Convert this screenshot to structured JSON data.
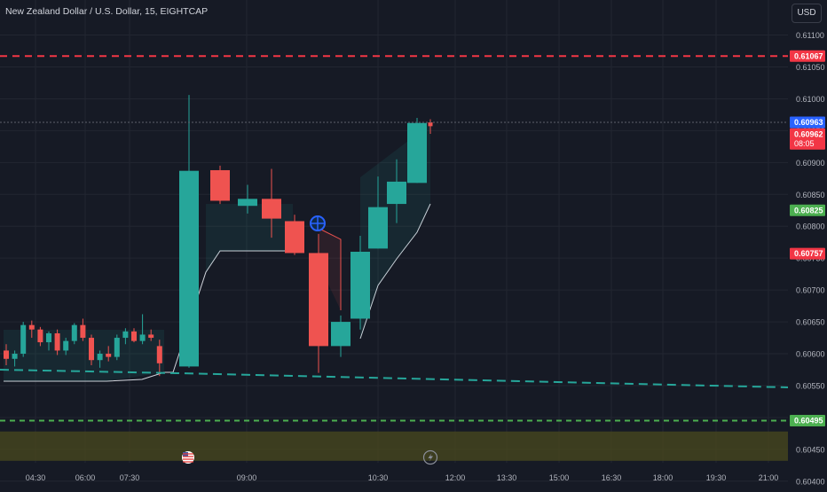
{
  "header": {
    "symbol_title": "New Zealand Dollar / U.S. Dollar, 15, EIGHTCAP",
    "currency_button": "USD"
  },
  "colors": {
    "background": "#161a25",
    "grid": "#222631",
    "up": "#26a69a",
    "down": "#ef5350",
    "red_level": "#f23645",
    "green_level": "#4caf50",
    "teal_dash": "#26a69a",
    "zone_fill": "#4a4a1e",
    "price_blue": "#2962ff",
    "axis_text": "#b2b5be"
  },
  "chart_data": {
    "type": "candlestick",
    "title": "New Zealand Dollar / U.S. Dollar, 15, EIGHTCAP",
    "ylim": [
      0.6039,
      0.61155
    ],
    "y_ticks": [
      "0.61100",
      "0.61050",
      "0.61000",
      "0.60950",
      "0.60900",
      "0.60850",
      "0.60800",
      "0.60750",
      "0.60700",
      "0.60650",
      "0.60600",
      "0.60550",
      "0.60500",
      "0.60450",
      "0.60400"
    ],
    "x_ticks": [
      "04:30",
      "06:00",
      "07:30",
      "09:00",
      "10:30",
      "12:00",
      "13:30",
      "15:00",
      "16:30",
      "18:00",
      "19:30",
      "21:00"
    ],
    "candles": [
      {
        "o": 0.60605,
        "h": 0.60615,
        "l": 0.60582,
        "c": 0.60592
      },
      {
        "o": 0.60592,
        "h": 0.60605,
        "l": 0.6058,
        "c": 0.606
      },
      {
        "o": 0.606,
        "h": 0.6065,
        "l": 0.60595,
        "c": 0.60645
      },
      {
        "o": 0.60645,
        "h": 0.60652,
        "l": 0.60625,
        "c": 0.60638
      },
      {
        "o": 0.60638,
        "h": 0.60642,
        "l": 0.60612,
        "c": 0.60618
      },
      {
        "o": 0.60618,
        "h": 0.60635,
        "l": 0.60605,
        "c": 0.60632
      },
      {
        "o": 0.60632,
        "h": 0.60638,
        "l": 0.60598,
        "c": 0.60605
      },
      {
        "o": 0.60605,
        "h": 0.60625,
        "l": 0.60598,
        "c": 0.6062
      },
      {
        "o": 0.6062,
        "h": 0.60648,
        "l": 0.60615,
        "c": 0.60645
      },
      {
        "o": 0.60645,
        "h": 0.60655,
        "l": 0.6062,
        "c": 0.60625
      },
      {
        "o": 0.60625,
        "h": 0.6063,
        "l": 0.60582,
        "c": 0.6059
      },
      {
        "o": 0.6059,
        "h": 0.60605,
        "l": 0.60578,
        "c": 0.606
      },
      {
        "o": 0.606,
        "h": 0.60612,
        "l": 0.60588,
        "c": 0.60595
      },
      {
        "o": 0.60595,
        "h": 0.6063,
        "l": 0.6059,
        "c": 0.60625
      },
      {
        "o": 0.60625,
        "h": 0.6064,
        "l": 0.60615,
        "c": 0.60635
      },
      {
        "o": 0.60635,
        "h": 0.6064,
        "l": 0.60618,
        "c": 0.6062
      },
      {
        "o": 0.6062,
        "h": 0.60662,
        "l": 0.60615,
        "c": 0.6063
      },
      {
        "o": 0.6063,
        "h": 0.60638,
        "l": 0.6062,
        "c": 0.60625
      },
      {
        "o": 0.60612,
        "h": 0.60622,
        "l": 0.60565,
        "c": 0.60585
      },
      {
        "o": 0.6058,
        "h": 0.61006,
        "l": 0.60578,
        "c": 0.60887
      },
      {
        "o": 0.60888,
        "h": 0.60895,
        "l": 0.60835,
        "c": 0.6084
      },
      {
        "o": 0.60832,
        "h": 0.60865,
        "l": 0.6082,
        "c": 0.60843
      },
      {
        "o": 0.60843,
        "h": 0.6089,
        "l": 0.60782,
        "c": 0.60812
      },
      {
        "o": 0.60808,
        "h": 0.60818,
        "l": 0.60755,
        "c": 0.60758
      },
      {
        "o": 0.60758,
        "h": 0.60788,
        "l": 0.6057,
        "c": 0.60612
      },
      {
        "o": 0.60612,
        "h": 0.6066,
        "l": 0.60595,
        "c": 0.6065
      },
      {
        "o": 0.60655,
        "h": 0.60785,
        "l": 0.60638,
        "c": 0.6076
      },
      {
        "o": 0.60765,
        "h": 0.60878,
        "l": 0.60765,
        "c": 0.6083
      },
      {
        "o": 0.60835,
        "h": 0.60905,
        "l": 0.60805,
        "c": 0.6087
      },
      {
        "o": 0.60868,
        "h": 0.6097,
        "l": 0.60868,
        "c": 0.60962
      },
      {
        "o": 0.60963,
        "h": 0.60968,
        "l": 0.60945,
        "c": 0.60957
      }
    ],
    "levels": [
      {
        "name": "red-dashed-level",
        "value": 0.61067,
        "label": "0.61067"
      },
      {
        "name": "green-dashed-level",
        "value": 0.60495,
        "label": "0.60495"
      }
    ],
    "price_labels": [
      {
        "value": 0.60963,
        "label": "0.60963",
        "style": "blue"
      },
      {
        "value": 0.60962,
        "label": "0.60962",
        "sublabel": "08:05",
        "style": "red"
      },
      {
        "value": 0.60825,
        "label": "0.60825",
        "style": "green"
      },
      {
        "value": 0.60757,
        "label": "0.60757",
        "style": "red"
      }
    ],
    "zone": {
      "top": 0.60478,
      "bottom": 0.60432
    },
    "event_icons": [
      "us-flag-icon",
      "lightning-icon",
      "crosshair-move-icon"
    ]
  }
}
